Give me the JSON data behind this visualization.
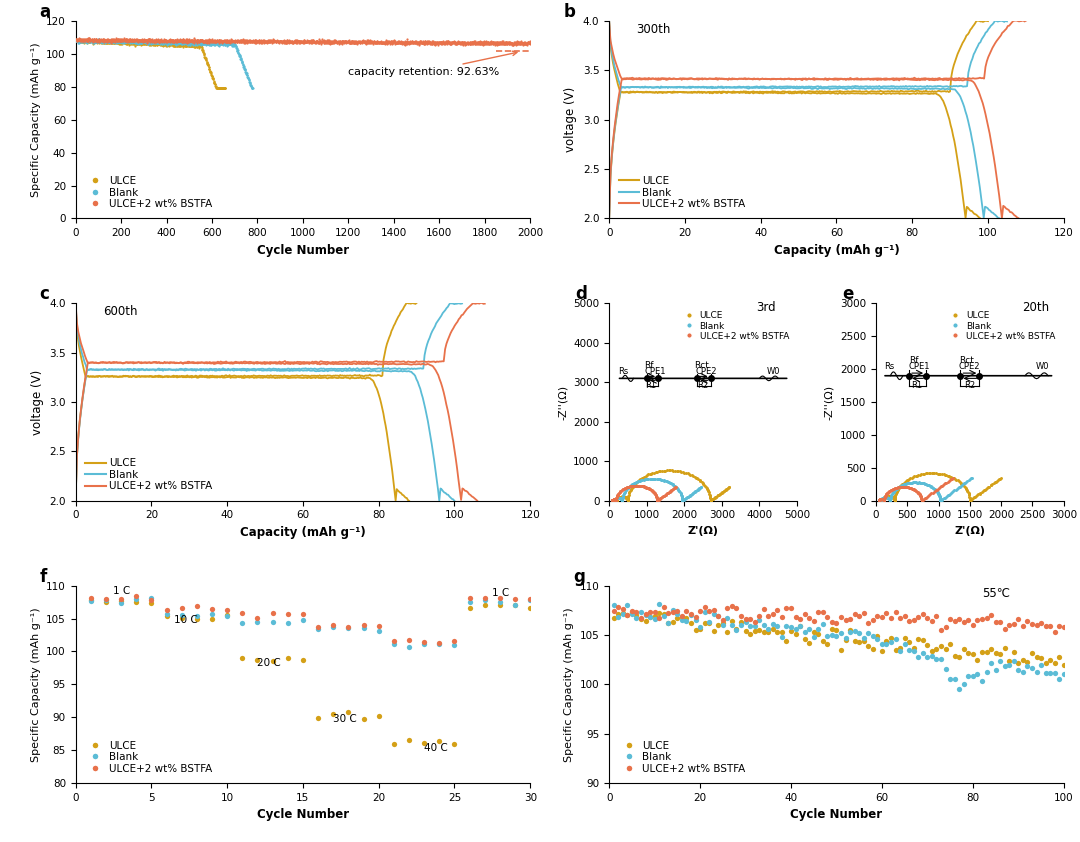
{
  "colors": {
    "ULCE": "#d4a017",
    "Blank": "#5bbcd6",
    "BSTFA": "#e8714a"
  },
  "panel_a": {
    "xlabel": "Cycle Number",
    "ylabel": "Specific Capacity (mAh g⁻¹)",
    "xlim": [
      0,
      2000
    ],
    "ylim": [
      0,
      120
    ],
    "dashed_y": 101.5,
    "annotation": "capacity retention: 92.63%"
  },
  "panel_b": {
    "subtitle": "300th",
    "xlabel": "Capacity (mAh g⁻¹)",
    "ylabel": "voltage (V)",
    "xlim": [
      0,
      120
    ],
    "ylim": [
      2.0,
      4.0
    ]
  },
  "panel_c": {
    "subtitle": "600th",
    "xlabel": "Capacity (mAh g⁻¹)",
    "ylabel": "voltage (V)",
    "xlim": [
      0,
      120
    ],
    "ylim": [
      2.0,
      4.0
    ]
  },
  "panel_d": {
    "subtitle": "3rd",
    "xlabel": "Z'(Ω)",
    "ylabel": "-Z''(Ω)",
    "xlim": [
      0,
      5000
    ],
    "ylim": [
      0,
      5000
    ]
  },
  "panel_e": {
    "subtitle": "20th",
    "xlabel": "Z'(Ω)",
    "ylabel": "-Z''(Ω)",
    "xlim": [
      0,
      3000
    ],
    "ylim": [
      0,
      3000
    ]
  },
  "panel_f": {
    "xlabel": "Cycle Number",
    "ylabel": "Specific Capacity (mAh g⁻¹)",
    "xlim": [
      0,
      30
    ],
    "ylim": [
      80,
      110
    ]
  },
  "panel_g": {
    "subtitle": "55℃",
    "xlabel": "Cycle Number",
    "ylabel": "Specific Capacity (mAh g⁻¹)",
    "xlim": [
      0,
      100
    ],
    "ylim": [
      90,
      110
    ]
  }
}
